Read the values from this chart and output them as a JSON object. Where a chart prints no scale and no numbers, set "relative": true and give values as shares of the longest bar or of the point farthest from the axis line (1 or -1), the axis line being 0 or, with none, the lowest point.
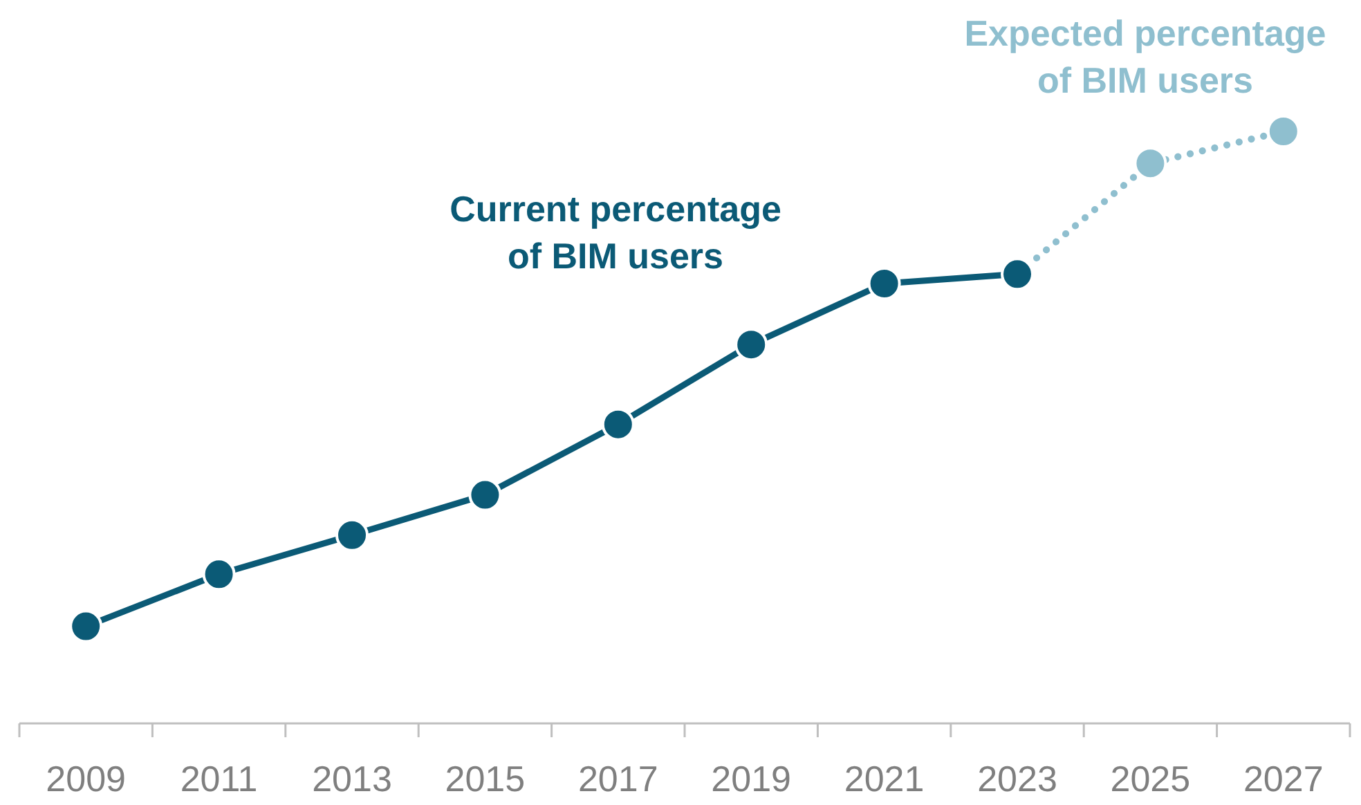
{
  "chart_data": {
    "type": "line",
    "relative": true,
    "categories": [
      "2009",
      "2011",
      "2013",
      "2015",
      "2017",
      "2019",
      "2021",
      "2023",
      "2025",
      "2027"
    ],
    "series": [
      {
        "name": "Expected percentage of BIM users",
        "color": "#8fbfcf",
        "line_style": "dotted",
        "values": [
          null,
          null,
          null,
          null,
          null,
          null,
          null,
          0.759,
          0.946,
          1
        ]
      },
      {
        "name": "Current percentage of BIM users",
        "color": "#0b5a76",
        "line_style": "solid",
        "values": [
          0.164,
          0.252,
          0.318,
          0.386,
          0.505,
          0.64,
          0.743,
          0.759,
          null,
          null
        ]
      }
    ],
    "marker": "circle"
  }
}
